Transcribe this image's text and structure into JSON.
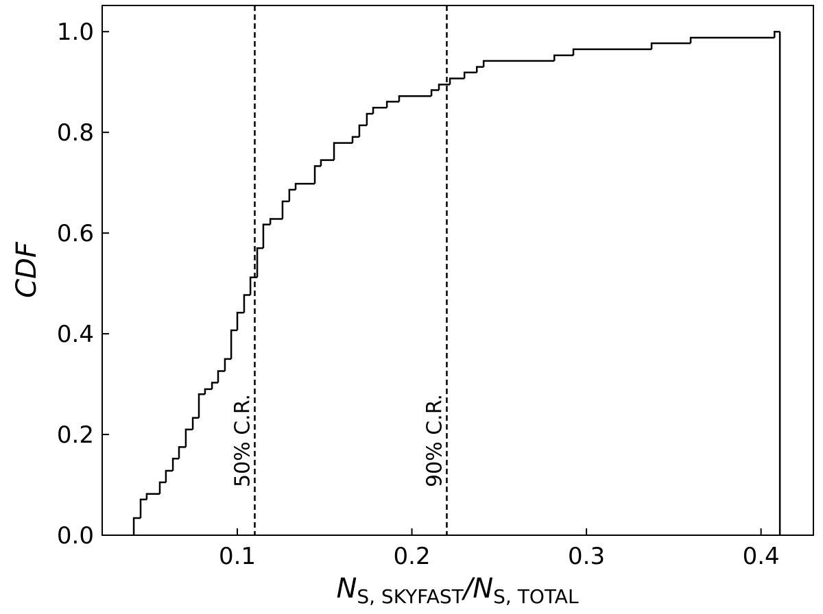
{
  "chart_data": {
    "type": "step",
    "ylabel": "CDF",
    "xlabel_parts": [
      "N",
      "S, SKYFAST",
      "/N",
      "S, TOTAL"
    ],
    "x": [
      0.0407,
      0.0446,
      0.0481,
      0.0556,
      0.0591,
      0.0631,
      0.0666,
      0.0705,
      0.0745,
      0.078,
      0.0815,
      0.0855,
      0.089,
      0.0929,
      0.0965,
      0.1,
      0.1039,
      0.1075,
      0.1114,
      0.1149,
      0.1189,
      0.1259,
      0.1298,
      0.1334,
      0.1444,
      0.1479,
      0.1554,
      0.166,
      0.1699,
      0.1742,
      0.1778,
      0.1857,
      0.1927,
      0.2112,
      0.2155,
      0.2218,
      0.2301,
      0.2372,
      0.2411,
      0.2816,
      0.2925,
      0.3373,
      0.3597,
      0.4077,
      0.4108
    ],
    "values": [
      0.034,
      0.071,
      0.082,
      0.105,
      0.128,
      0.152,
      0.175,
      0.21,
      0.233,
      0.28,
      0.29,
      0.303,
      0.326,
      0.35,
      0.407,
      0.442,
      0.477,
      0.512,
      0.57,
      0.617,
      0.628,
      0.663,
      0.686,
      0.698,
      0.733,
      0.745,
      0.779,
      0.791,
      0.814,
      0.837,
      0.849,
      0.861,
      0.872,
      0.884,
      0.895,
      0.907,
      0.919,
      0.93,
      0.942,
      0.953,
      0.965,
      0.977,
      0.988,
      1.0,
      0
    ],
    "color": "#000000",
    "annotations": [
      {
        "x": 0.11,
        "label": "50% C.R."
      },
      {
        "x": 0.22,
        "label": "90% C.R."
      }
    ],
    "xlim": [
      0.0226,
      0.43
    ],
    "ylim": [
      0,
      1.052
    ],
    "xticks": [
      0.1,
      0.2,
      0.3,
      0.4
    ],
    "yticks": [
      {
        "value": 0,
        "label": "0.0"
      },
      0.2,
      0.4,
      0.6,
      0.8,
      {
        "value": 1,
        "label": "1.0"
      }
    ]
  }
}
